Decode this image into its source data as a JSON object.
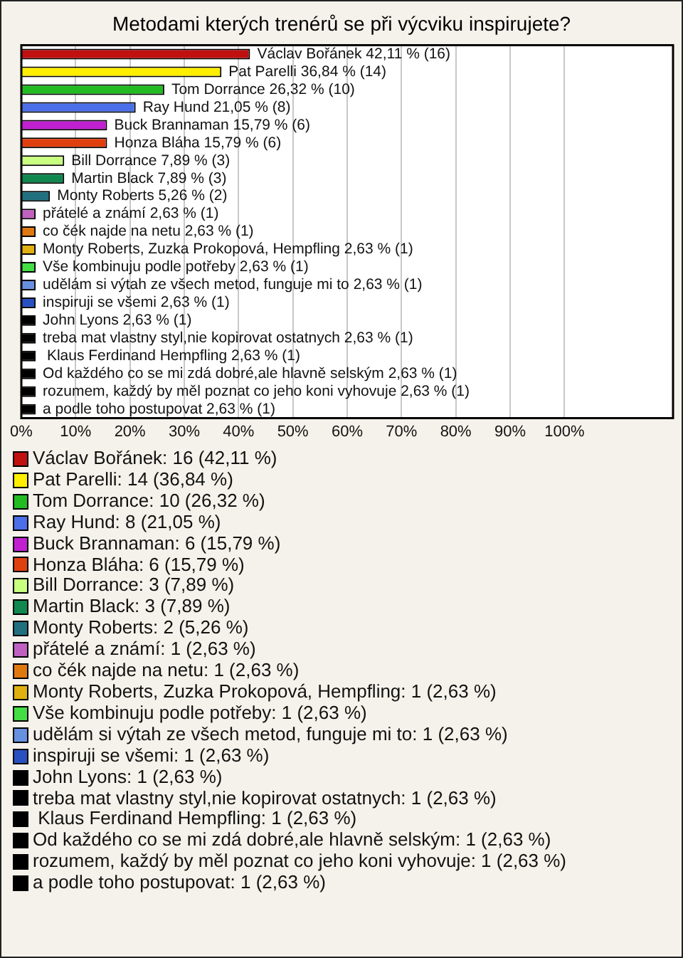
{
  "chart_data": {
    "type": "bar",
    "orientation": "horizontal",
    "title": "Metodami kterých trenérů se při výcviku inspirujete?",
    "categories": [
      "Václav Bořánek",
      "Pat Parelli",
      "Tom Dorrance",
      "Ray Hund",
      "Buck Brannaman",
      "Honza Bláha",
      "Bill Dorrance",
      "Martin Black",
      "Monty Roberts",
      "přátelé a známí",
      "co čék najde na netu",
      "Monty Roberts, Zuzka Prokopová, Hempfling",
      "Vše kombinuju podle potřeby",
      "udělám si výtah ze všech metod, funguje mi to",
      "inspiruji se všemi",
      "John Lyons",
      "treba mat vlastny styl,nie kopirovat ostatnych",
      " Klaus Ferdinand Hempfling",
      "Od každého co se mi zdá dobré,ale hlavně selským",
      "rozumem, každý by měl poznat co jeho koni vyhovuje",
      "a podle toho postupovat"
    ],
    "values": [
      42.11,
      36.84,
      26.32,
      21.05,
      15.79,
      15.79,
      7.89,
      7.89,
      5.26,
      2.63,
      2.63,
      2.63,
      2.63,
      2.63,
      2.63,
      2.63,
      2.63,
      2.63,
      2.63,
      2.63,
      2.63
    ],
    "value_labels": [
      "42,11 % (16)",
      "36,84 % (14)",
      "26,32 % (10)",
      "21,05 % (8)",
      "15,79 % (6)",
      "15,79 % (6)",
      "7,89 % (3)",
      "7,89 % (3)",
      "5,26 % (2)",
      "2,63 % (1)",
      "2,63 % (1)",
      "2,63 % (1)",
      "2,63 % (1)",
      "2,63 % (1)",
      "2,63 % (1)",
      "2,63 % (1)",
      "2,63 % (1)",
      "2,63 % (1)",
      "2,63 % (1)",
      "2,63 % (1)",
      "2,63 % (1)"
    ],
    "colors": [
      "#c01010",
      "#ffee00",
      "#22bb22",
      "#4a6fe8",
      "#c020d0",
      "#e04010",
      "#c8ff80",
      "#108850",
      "#207080",
      "#c060c0",
      "#e07810",
      "#e0b010",
      "#44dd44",
      "#6890e0",
      "#2850c0",
      "#000000",
      "#000000",
      "#000000",
      "#000000",
      "#000000",
      "#000000"
    ],
    "xlim": [
      0,
      120
    ],
    "xticks": [
      {
        "value": 0,
        "label": "0%"
      },
      {
        "value": 10,
        "label": "10%"
      },
      {
        "value": 20,
        "label": "20%"
      },
      {
        "value": 30,
        "label": "30%"
      },
      {
        "value": 40,
        "label": "40%"
      },
      {
        "value": 50,
        "label": "50%"
      },
      {
        "value": 60,
        "label": "60%"
      },
      {
        "value": 70,
        "label": "70%"
      },
      {
        "value": 80,
        "label": "80%"
      },
      {
        "value": 90,
        "label": "90%"
      },
      {
        "value": 100,
        "label": "100%"
      }
    ],
    "grid": "x",
    "tick_labels": "x",
    "annotations": [
      "Václav Bořánek: 16 (42,11 %)",
      "Pat Parelli: 14 (36,84 %)",
      "Tom Dorrance: 10 (26,32 %)",
      "Ray Hund: 8 (21,05 %)",
      "Buck Brannaman: 6 (15,79 %)",
      "Honza Bláha: 6 (15,79 %)",
      "Bill Dorrance: 3 (7,89 %)",
      "Martin Black: 3 (7,89 %)",
      "Monty Roberts: 2 (5,26 %)",
      "přátelé a známí: 1 (2,63 %)",
      "co čék najde na netu: 1 (2,63 %)",
      "Monty Roberts, Zuzka Prokopová, Hempfling: 1 (2,63 %)",
      "Vše kombinuju podle potřeby: 1 (2,63 %)",
      "udělám si výtah ze všech metod, funguje mi to: 1 (2,63 %)",
      "inspiruji se všemi: 1 (2,63 %)",
      "John Lyons: 1 (2,63 %)",
      "treba mat vlastny styl,nie kopirovat ostatnych: 1 (2,63 %)",
      " Klaus Ferdinand Hempfling: 1 (2,63 %)",
      "Od každého co se mi zdá dobré,ale hlavně selským: 1 (2,63 %)",
      "rozumem, každý by měl poznat co jeho koni vyhovuje: 1 (2,63 %)",
      "a podle toho postupovat: 1 (2,63 %)"
    ]
  }
}
